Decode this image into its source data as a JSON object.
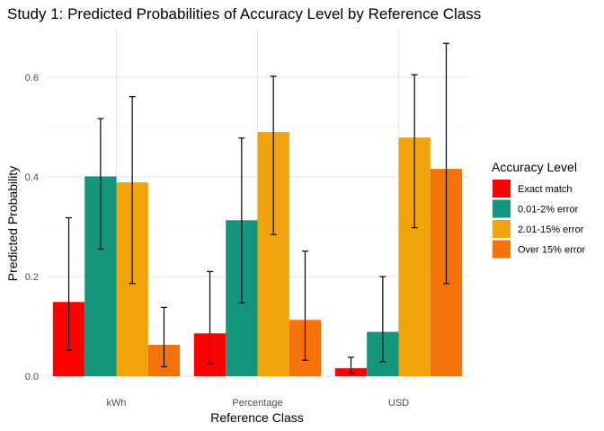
{
  "chart_data": {
    "type": "bar",
    "title": "Study 1: Predicted Probabilities of Accuracy Level by Reference Class",
    "xlabel": "Reference Class",
    "ylabel": "Predicted Probability",
    "categories": [
      "kWh",
      "Percentage",
      "USD"
    ],
    "ylim": [
      0,
      0.7
    ],
    "yticks": [
      "0.0",
      "0.2",
      "0.4",
      "0.6"
    ],
    "ytick_values": [
      0,
      0.2,
      0.4,
      0.6
    ],
    "grid": true,
    "legend_position": "right",
    "legend_title": "Accuracy Level",
    "series": [
      {
        "name": "Exact match",
        "color": "#ff0000",
        "values": [
          0.149,
          0.086,
          0.016
        ],
        "lower": [
          0.052,
          0.025,
          0.006
        ],
        "upper": [
          0.318,
          0.21,
          0.038
        ]
      },
      {
        "name": "0.01-2% error",
        "color": "#14967d",
        "values": [
          0.401,
          0.313,
          0.089
        ],
        "lower": [
          0.255,
          0.147,
          0.029
        ],
        "upper": [
          0.517,
          0.478,
          0.2
        ]
      },
      {
        "name": "2.01-15% error",
        "color": "#f0a30a",
        "values": [
          0.389,
          0.49,
          0.479
        ],
        "lower": [
          0.186,
          0.284,
          0.298
        ],
        "upper": [
          0.561,
          0.602,
          0.605
        ]
      },
      {
        "name": "Over 15% error",
        "color": "#f47209",
        "values": [
          0.063,
          0.113,
          0.416
        ],
        "lower": [
          0.019,
          0.032,
          0.186
        ],
        "upper": [
          0.138,
          0.251,
          0.668
        ]
      }
    ]
  }
}
